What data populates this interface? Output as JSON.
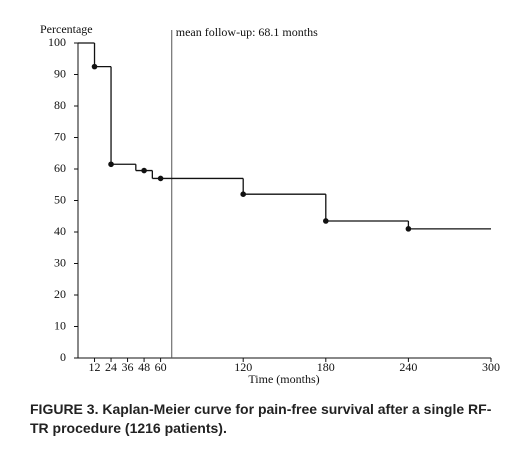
{
  "chart_data": {
    "type": "step",
    "y_label": "Percentage",
    "x_label": "Time (months)",
    "annotation": "mean follow-up: 68.1 months",
    "annotation_x": 68.1,
    "xlim": [
      0,
      300
    ],
    "ylim": [
      0,
      100
    ],
    "xticks": [
      12,
      24,
      36,
      48,
      60,
      120,
      180,
      240,
      300
    ],
    "yticks": [
      0,
      10,
      20,
      30,
      40,
      50,
      60,
      70,
      80,
      90,
      100
    ],
    "series": [
      {
        "color": "#111",
        "x": [
          0,
          12,
          24,
          42,
          54,
          120,
          180,
          240
        ],
        "values": [
          100,
          92.5,
          61.5,
          59.5,
          57,
          52,
          43.5,
          41
        ]
      },
      {
        "color": "#111",
        "x": [
          12,
          24,
          48,
          60,
          120,
          180,
          240
        ],
        "values": [
          92.5,
          61.5,
          59.5,
          57,
          52,
          43.5,
          41
        ]
      }
    ],
    "caption": "FIGURE 3. Kaplan-Meier curve for pain-free survival after a single RF-TR procedure (1216 patients)."
  }
}
